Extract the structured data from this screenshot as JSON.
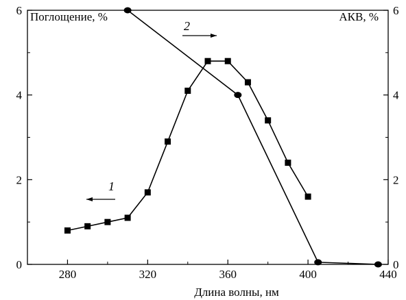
{
  "chart_data": {
    "type": "line",
    "xlabel": "Длина волны, нм",
    "ylabel_left": "Поглощение, %",
    "ylabel_right": "АКВ, %",
    "xlim": [
      260,
      440
    ],
    "ylim": [
      0,
      6
    ],
    "x_ticks": [
      280,
      320,
      360,
      400,
      440
    ],
    "y_ticks": [
      0,
      2,
      4,
      6
    ],
    "grid": false,
    "series": [
      {
        "name": "1",
        "axis": "left",
        "marker": "square",
        "color": "#000000",
        "arrow": "left",
        "x": [
          280,
          290,
          300,
          310,
          320,
          330,
          340,
          350,
          360,
          370,
          380,
          390,
          400
        ],
        "y": [
          0.8,
          0.9,
          1.0,
          1.1,
          1.7,
          2.9,
          4.1,
          4.8,
          4.8,
          4.3,
          3.4,
          2.4,
          1.6
        ]
      },
      {
        "name": "2",
        "axis": "right",
        "marker": "circle",
        "color": "#000000",
        "arrow": "right",
        "x": [
          310,
          365,
          405,
          435
        ],
        "y": [
          6.0,
          4.0,
          0.05,
          0.0
        ]
      }
    ]
  }
}
